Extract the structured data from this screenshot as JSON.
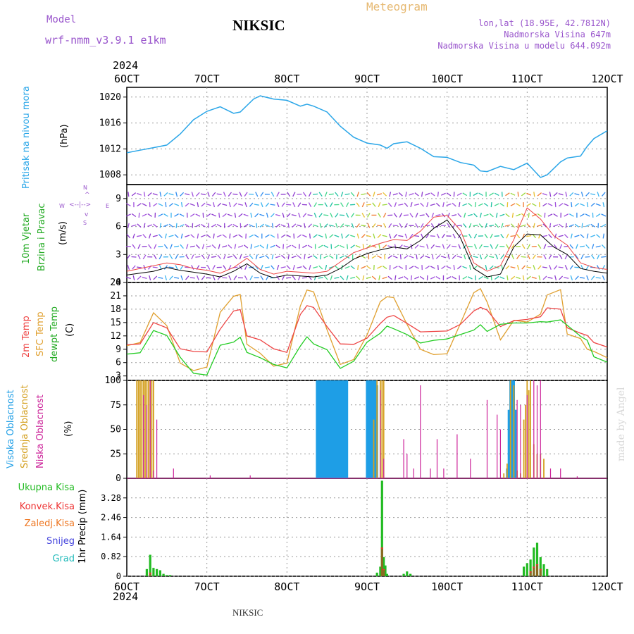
{
  "header": {
    "model_label": "Model",
    "model_name": "wrf-nmm_v3.9.1 e1km",
    "station": "NIKSIC",
    "meteogram": "Meteogram",
    "coords": "lon,lat (18.95E, 42.7812N)",
    "elevation": "Nadmorska Visina 647m",
    "model_elevation": "Nadmorska Visina u modelu 644.092m",
    "footer_station": "NIKSIC",
    "credit": "made by Angel"
  },
  "axes": {
    "x_labels": [
      "6OCT",
      "7OCT",
      "8OCT",
      "9OCT",
      "10OCT",
      "11OCT",
      "12OCT"
    ],
    "year": "2024",
    "panel1": {
      "label": "Pritisak na nivou mora",
      "unit": "(hPa)"
    },
    "panel2": {
      "label1": "10m Vjetar",
      "label2": "Brzina i Pravac",
      "unit": "(m/s)",
      "compass": [
        "N",
        "S",
        "W",
        "E"
      ]
    },
    "panel3": {
      "label1": "2m Temp",
      "label2": "SFC Temp",
      "label3": "dewpt Temp",
      "unit": "(C)"
    },
    "panel4": {
      "label1": "Visoka Oblacnost",
      "label2": "Srednja Oblacnost",
      "label3": "Niska Oblacnost",
      "unit": "(%)"
    },
    "panel5": {
      "legend": [
        "Ukupna Kisa",
        "Konvek.Kisa",
        "Zaledj.Kisa",
        "Snijeg",
        "Grad"
      ],
      "unit": "1hr Precip (mm)"
    }
  },
  "colors": {
    "pressure": "#2aa6e8",
    "temp2m": "#ee4444",
    "sfc": "#e0a030",
    "dewpt": "#22cc22",
    "high_cloud": "#1e9ee6",
    "mid_cloud": "#d4a020",
    "low_cloud": "#cc2299",
    "rain": "#22bb22",
    "conv": "#ee3333",
    "frz": "#ee7722",
    "snow": "#4444dd",
    "hail": "#22bbbb",
    "label_pressure": "#2aa6e8",
    "label_purple": "#9955cc"
  },
  "chart_data": [
    {
      "type": "line",
      "panel": "pressure",
      "xlim": [
        0,
        144
      ],
      "ylim": [
        1006.5,
        1021.5
      ],
      "y_ticks": [
        1008,
        1012,
        1016,
        1020
      ],
      "x": [
        0,
        4,
        8,
        12,
        16,
        20,
        24,
        28,
        32,
        34,
        38,
        40,
        44,
        48,
        52,
        54,
        56,
        60,
        64,
        68,
        72,
        76,
        78,
        80,
        84,
        88,
        92,
        96,
        100,
        104,
        106,
        108,
        112,
        116,
        120,
        124,
        126,
        130,
        132,
        136,
        138,
        140,
        144
      ],
      "values": [
        1011.4,
        1011.8,
        1012.2,
        1012.6,
        1014.3,
        1016.5,
        1017.8,
        1018.5,
        1017.5,
        1017.7,
        1019.7,
        1020.2,
        1019.7,
        1019.5,
        1018.6,
        1018.9,
        1018.6,
        1017.7,
        1015.5,
        1013.8,
        1012.9,
        1012.6,
        1012.1,
        1012.8,
        1013.1,
        1012.1,
        1010.8,
        1010.7,
        1009.9,
        1009.5,
        1008.6,
        1008.5,
        1009.3,
        1008.8,
        1009.8,
        1007.6,
        1008.0,
        1010.0,
        1010.6,
        1010.9,
        1012.4,
        1013.6,
        1014.8
      ]
    },
    {
      "type": "line",
      "panel": "wind",
      "xlim": [
        0,
        144
      ],
      "ylim": [
        0,
        10.5
      ],
      "y_ticks": [
        0,
        3,
        6,
        9
      ],
      "x": [
        0,
        4,
        8,
        12,
        16,
        20,
        24,
        28,
        32,
        36,
        40,
        44,
        48,
        52,
        56,
        60,
        64,
        68,
        72,
        76,
        80,
        84,
        88,
        92,
        96,
        100,
        104,
        108,
        112,
        116,
        120,
        124,
        128,
        132,
        136,
        140,
        144
      ],
      "series": [
        {
          "name": "speed",
          "values": [
            0.8,
            1.0,
            1.2,
            1.6,
            1.3,
            1.1,
            0.9,
            0.6,
            1.2,
            2.0,
            1.0,
            0.5,
            0.8,
            0.7,
            0.6,
            0.8,
            1.5,
            2.5,
            3.1,
            3.5,
            3.8,
            3.6,
            4.5,
            5.8,
            6.7,
            4.8,
            1.5,
            0.6,
            0.9,
            3.8,
            5.2,
            5.1,
            3.8,
            3.0,
            1.5,
            1.2,
            1.0
          ]
        },
        {
          "name": "gust",
          "values": [
            1.2,
            1.5,
            1.8,
            2.1,
            1.9,
            1.5,
            1.3,
            1.0,
            1.6,
            2.6,
            1.4,
            0.9,
            1.2,
            1.1,
            1.0,
            1.2,
            2.2,
            3.2,
            3.7,
            4.2,
            4.6,
            4.5,
            5.5,
            7.0,
            7.2,
            5.6,
            2.1,
            1.2,
            1.8,
            4.6,
            8.0,
            6.8,
            5.0,
            4.0,
            2.1,
            1.6,
            1.4
          ]
        }
      ],
      "annotations": [
        "N",
        "S",
        "W",
        "E"
      ]
    },
    {
      "type": "line",
      "panel": "temperature",
      "xlim": [
        0,
        144
      ],
      "ylim": [
        2,
        24
      ],
      "y_ticks": [
        3,
        6,
        9,
        12,
        15,
        18,
        21,
        24
      ],
      "x": [
        0,
        4,
        8,
        12,
        16,
        20,
        24,
        28,
        32,
        34,
        36,
        40,
        44,
        48,
        52,
        54,
        56,
        60,
        64,
        68,
        72,
        76,
        78,
        80,
        84,
        88,
        92,
        96,
        100,
        104,
        106,
        108,
        112,
        116,
        120,
        124,
        126,
        130,
        132,
        136,
        138,
        140,
        144
      ],
      "series": [
        {
          "name": "2m Temp",
          "values": [
            10,
            10.2,
            15,
            13.8,
            9.1,
            8.5,
            8.4,
            13.5,
            17.6,
            17.9,
            12.0,
            11.1,
            9.1,
            8.3,
            16.8,
            18.8,
            18.4,
            14.1,
            10.2,
            10.1,
            11.5,
            14.8,
            16.2,
            16.6,
            14.8,
            12.9,
            13.0,
            13.1,
            14.6,
            17.6,
            18.4,
            17.8,
            14.1,
            15.4,
            15.7,
            16.3,
            18.3,
            18.0,
            13.8,
            12.6,
            12.1,
            10.5,
            9.5
          ]
        },
        {
          "name": "SFC Temp",
          "values": [
            9.8,
            10.5,
            17.2,
            14.3,
            5.9,
            4.2,
            5.0,
            17.3,
            20.9,
            21.3,
            10.1,
            8.1,
            5.2,
            5.9,
            18.7,
            22.3,
            21.9,
            13.4,
            5.6,
            6.7,
            12.2,
            19.7,
            20.8,
            20.6,
            14.6,
            9.0,
            7.8,
            8.0,
            14.8,
            21.7,
            22.6,
            19.6,
            11.1,
            15.5,
            15.1,
            16.9,
            21.2,
            22.4,
            12.4,
            11.4,
            9.0,
            8.5,
            7.1
          ]
        },
        {
          "name": "dewpt Temp",
          "values": [
            7.9,
            8.2,
            13.2,
            12.1,
            7.2,
            3.6,
            3.2,
            9.9,
            10.6,
            11.7,
            8.3,
            7.1,
            5.6,
            4.8,
            9.7,
            11.8,
            10.2,
            8.9,
            4.7,
            6.3,
            10.6,
            12.6,
            14.2,
            13.6,
            12.3,
            10.4,
            11.0,
            11.3,
            12.3,
            13.3,
            14.5,
            13.0,
            14.6,
            14.9,
            14.9,
            15.2,
            15.1,
            15.6,
            14.4,
            11.9,
            11.0,
            7.3,
            6.1
          ]
        }
      ]
    },
    {
      "type": "bar",
      "panel": "cloud",
      "xlim": [
        0,
        144
      ],
      "ylim": [
        0,
        100
      ],
      "y_ticks": [
        0,
        25,
        50,
        75,
        100
      ],
      "series": [
        {
          "name": "Visoka Oblacnost",
          "x": [
            57,
            57.5,
            58,
            58.5,
            59,
            59.5,
            60,
            60.5,
            61,
            61.5,
            62,
            62.5,
            63,
            63.5,
            64,
            64.5,
            65,
            65.5,
            66,
            72,
            72.5,
            73,
            73.5,
            74,
            74.5,
            75,
            114,
            114.5,
            115,
            115.5,
            116,
            116.5
          ],
          "values": [
            100,
            100,
            100,
            100,
            100,
            100,
            100,
            100,
            100,
            100,
            100,
            100,
            100,
            100,
            100,
            100,
            100,
            100,
            100,
            100,
            100,
            100,
            100,
            100,
            100,
            95,
            10,
            70,
            100,
            100,
            100,
            70
          ]
        },
        {
          "name": "Srednja Oblacnost",
          "x": [
            3,
            3.5,
            4,
            4.5,
            5,
            5.5,
            6,
            6.5,
            7,
            7.5,
            8,
            74,
            75,
            76,
            76.5,
            77,
            113,
            114,
            115,
            116,
            117,
            118,
            119,
            119.5,
            120,
            120.5,
            121,
            122,
            123,
            124,
            125
          ],
          "values": [
            100,
            100,
            100,
            100,
            100,
            100,
            100,
            100,
            100,
            100,
            100,
            60,
            100,
            100,
            100,
            100,
            5,
            15,
            100,
            95,
            8,
            5,
            60,
            75,
            100,
            90,
            100,
            35,
            25,
            25,
            20
          ]
        },
        {
          "name": "Niska Oblacnost",
          "x": [
            5,
            6,
            7,
            8,
            9,
            14,
            25,
            37,
            76,
            77,
            83,
            84,
            86,
            88,
            91,
            93,
            95,
            99,
            103,
            108,
            111,
            112,
            117,
            118,
            120,
            122,
            123,
            124,
            127,
            130,
            135
          ],
          "values": [
            85,
            75,
            100,
            8,
            60,
            10,
            3,
            3,
            90,
            20,
            40,
            25,
            10,
            95,
            10,
            40,
            10,
            45,
            20,
            80,
            65,
            50,
            80,
            75,
            85,
            100,
            95,
            100,
            10,
            10,
            2
          ]
        }
      ]
    },
    {
      "type": "bar",
      "panel": "precipitation",
      "xlim": [
        0,
        144
      ],
      "ylim": [
        0,
        4.1
      ],
      "y_ticks": [
        0,
        0.82,
        1.64,
        2.46,
        3.28
      ],
      "series": [
        {
          "name": "Ukupna Kisa",
          "x": [
            6,
            7,
            8,
            9,
            10,
            11,
            12,
            13,
            75,
            76,
            76.5,
            77,
            77.5,
            78,
            83,
            84,
            85,
            119,
            120,
            121,
            122,
            123,
            124,
            125,
            126
          ],
          "values": [
            0.3,
            0.9,
            0.35,
            0.3,
            0.25,
            0.1,
            0.05,
            0.05,
            0.15,
            0.4,
            4.0,
            0.8,
            0.45,
            0.1,
            0.1,
            0.2,
            0.1,
            0.4,
            0.55,
            0.7,
            1.2,
            1.4,
            0.8,
            0.5,
            0.3
          ]
        },
        {
          "name": "Konvek.Kisa",
          "x": [
            7,
            76.5,
            77,
            121,
            122,
            123,
            124
          ],
          "values": [
            0.15,
            1.2,
            0.3,
            0.2,
            0.4,
            0.5,
            0.3
          ]
        }
      ]
    }
  ]
}
